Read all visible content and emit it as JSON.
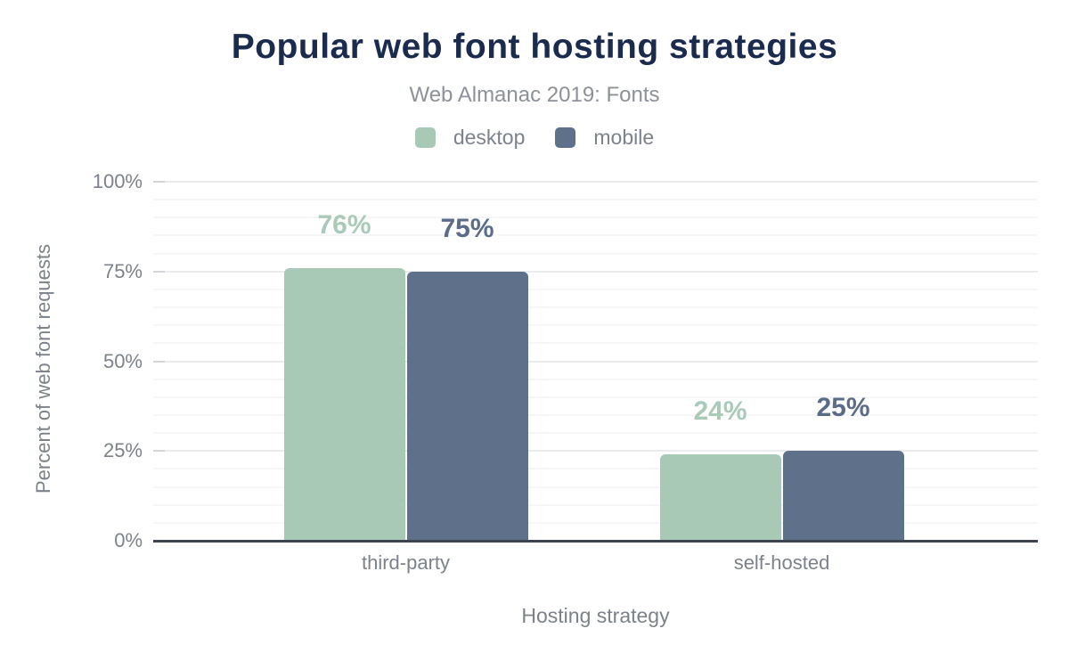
{
  "chart_data": {
    "type": "bar",
    "title": "Popular web font hosting strategies",
    "subtitle": "Web Almanac 2019: Fonts",
    "categories": [
      "third-party",
      "self-hosted"
    ],
    "series": [
      {
        "name": "desktop",
        "color": "#a7c9b6",
        "label_color": "#a9cab7",
        "values": [
          76,
          24
        ]
      },
      {
        "name": "mobile",
        "color": "#5f708b",
        "label_color": "#5b6c88",
        "values": [
          75,
          25
        ]
      }
    ],
    "value_labels": [
      [
        "76%",
        "24%"
      ],
      [
        "75%",
        "25%"
      ]
    ],
    "xlabel": "Hosting strategy",
    "ylabel": "Percent of web font requests",
    "ylim": [
      0,
      100
    ],
    "yticks": [
      0,
      25,
      50,
      75,
      100
    ],
    "ytick_labels": [
      "0%",
      "25%",
      "50%",
      "75%",
      "100%"
    ],
    "minor_tick_step": 5,
    "grid": "on",
    "legend_position": "top",
    "colors": {
      "background": "#ffffff",
      "title": "#1b2b4d",
      "subtitle": "#8c919a",
      "axis_text": "#7c828b",
      "axis_line": "#3c4452",
      "grid_major": "#eaebed",
      "grid_minor": "#f6f6f8",
      "tick": "#d2d4d8"
    }
  }
}
